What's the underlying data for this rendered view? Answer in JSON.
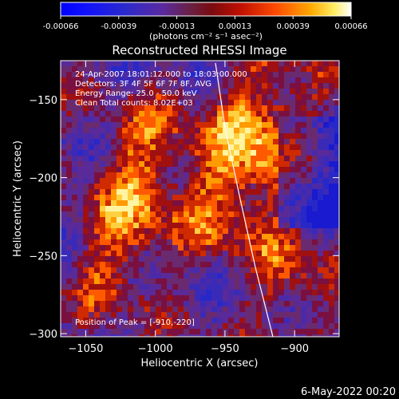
{
  "colorbar": {
    "ticks": [
      "-0.00066",
      "-0.00039",
      "-0.00013",
      "0.00013",
      "0.00039",
      "0.00066"
    ],
    "units": "(photons cm⁻² s⁻¹ asec⁻²)"
  },
  "image": {
    "title": "Reconstructed RHESSI Image",
    "info": [
      "24-Apr-2007 18:01:12.000 to 18:03:00.000",
      "Detectors: 3F 4F 5F 6F 7F 8F, AVG",
      "Energy Range: 25.0 - 50.0 keV",
      "Clean     Total counts: 8.02E+03"
    ],
    "peak_text": "Position of Peak = [-910,-220]",
    "xlabel": "Heliocentric X (arcsec)",
    "ylabel": "Heliocentric Y (arcsec)",
    "xticks": [
      {
        "label": "−1050",
        "value": -1050
      },
      {
        "label": "−1000",
        "value": -1000
      },
      {
        "label": "−950",
        "value": -950
      },
      {
        "label": "−900",
        "value": -900
      }
    ],
    "yticks": [
      {
        "label": "−150",
        "value": -150
      },
      {
        "label": "−200",
        "value": -200
      },
      {
        "label": "−250",
        "value": -250
      },
      {
        "label": "−300",
        "value": -300
      }
    ],
    "limb_color": "#ffffff"
  },
  "footer": {
    "date": "6-May-2022 00:20"
  }
}
